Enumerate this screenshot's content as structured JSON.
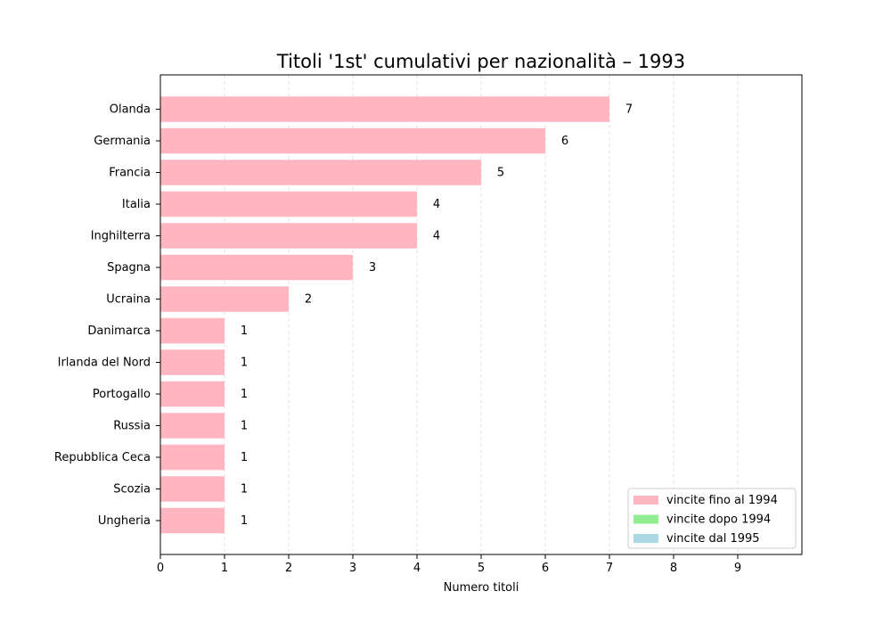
{
  "chart_data": {
    "type": "bar",
    "orientation": "horizontal",
    "title": "Titoli '1st' cumulativi per nazionalità – 1993",
    "xlabel": "Numero titoli",
    "ylabel": "",
    "xlim": [
      0,
      10
    ],
    "xticks": [
      0,
      1,
      2,
      3,
      4,
      5,
      6,
      7,
      8,
      9
    ],
    "grid": "vertical dashed",
    "categories": [
      "Olanda",
      "Germania",
      "Francia",
      "Italia",
      "Inghilterra",
      "Spagna",
      "Ucraina",
      "Danimarca",
      "Irlanda del Nord",
      "Portogallo",
      "Russia",
      "Repubblica Ceca",
      "Scozia",
      "Ungheria"
    ],
    "series": [
      {
        "name": "vincite fino al 1994",
        "color": "#FFB6C1",
        "values": [
          7,
          6,
          5,
          4,
          4,
          3,
          2,
          1,
          1,
          1,
          1,
          1,
          1,
          1
        ]
      },
      {
        "name": "vincite dopo 1994",
        "color": "#90EE90",
        "values": [
          0,
          0,
          0,
          0,
          0,
          0,
          0,
          0,
          0,
          0,
          0,
          0,
          0,
          0
        ]
      },
      {
        "name": "vincite dal 1995",
        "color": "#ADD8E6",
        "values": [
          0,
          0,
          0,
          0,
          0,
          0,
          0,
          0,
          0,
          0,
          0,
          0,
          0,
          0
        ]
      }
    ],
    "data_labels": [
      "7",
      "6",
      "5",
      "4",
      "4",
      "3",
      "2",
      "1",
      "1",
      "1",
      "1",
      "1",
      "1",
      "1"
    ],
    "legend_position": "lower-right"
  }
}
